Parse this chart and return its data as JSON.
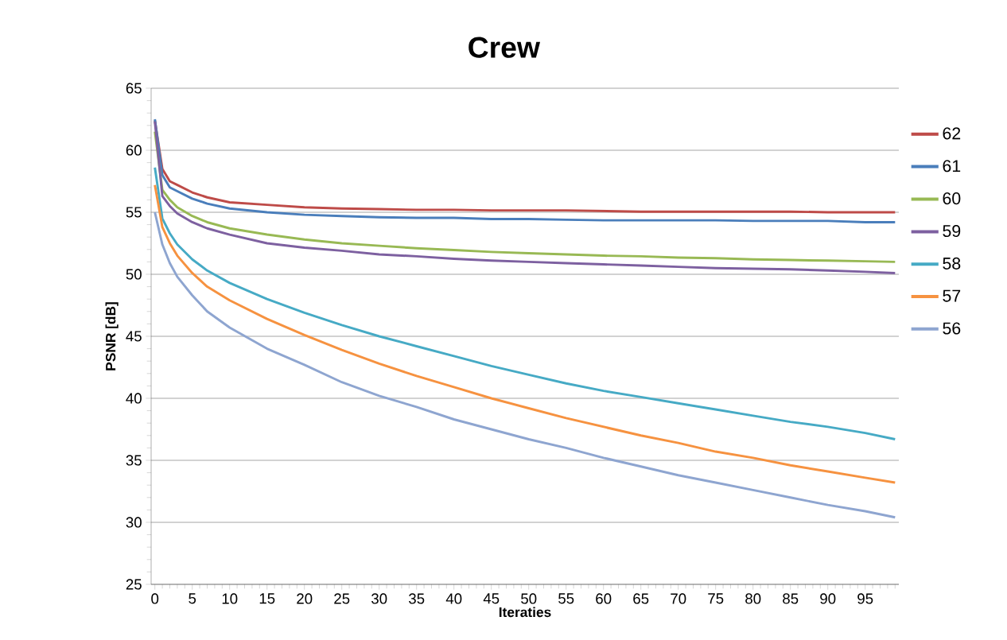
{
  "chart_data": {
    "type": "line",
    "title": "Crew",
    "xlabel": "Iteraties",
    "ylabel": "PSNR [dB]",
    "x": [
      0,
      1,
      2,
      3,
      5,
      7,
      10,
      15,
      20,
      25,
      30,
      35,
      40,
      45,
      50,
      55,
      60,
      65,
      70,
      75,
      80,
      85,
      90,
      95,
      99
    ],
    "series": [
      {
        "name": "62",
        "color": "#be4b48",
        "values": [
          62.4,
          58.5,
          57.5,
          57.2,
          56.6,
          56.2,
          55.8,
          55.6,
          55.4,
          55.3,
          55.25,
          55.2,
          55.2,
          55.15,
          55.15,
          55.15,
          55.1,
          55.05,
          55.05,
          55.05,
          55.05,
          55.05,
          55.0,
          55.0,
          55.0
        ]
      },
      {
        "name": "61",
        "color": "#4a7ebb",
        "values": [
          62.5,
          58.0,
          57.0,
          56.7,
          56.1,
          55.7,
          55.3,
          55.0,
          54.8,
          54.7,
          54.6,
          54.55,
          54.55,
          54.45,
          54.45,
          54.4,
          54.35,
          54.35,
          54.35,
          54.35,
          54.3,
          54.3,
          54.3,
          54.2,
          54.2
        ]
      },
      {
        "name": "60",
        "color": "#98b954",
        "values": [
          61.5,
          56.8,
          56.0,
          55.4,
          54.7,
          54.2,
          53.7,
          53.2,
          52.8,
          52.5,
          52.3,
          52.1,
          51.95,
          51.8,
          51.7,
          51.6,
          51.5,
          51.45,
          51.35,
          51.3,
          51.2,
          51.15,
          51.1,
          51.05,
          51.0
        ]
      },
      {
        "name": "59",
        "color": "#7d60a0",
        "values": [
          62.3,
          56.3,
          55.5,
          54.9,
          54.2,
          53.7,
          53.2,
          52.5,
          52.15,
          51.9,
          51.6,
          51.45,
          51.25,
          51.1,
          51.0,
          50.9,
          50.8,
          50.7,
          50.6,
          50.5,
          50.45,
          50.4,
          50.3,
          50.2,
          50.1
        ]
      },
      {
        "name": "58",
        "color": "#46aac5",
        "values": [
          58.6,
          54.5,
          53.3,
          52.4,
          51.2,
          50.3,
          49.3,
          48.0,
          46.9,
          45.9,
          45.0,
          44.2,
          43.4,
          42.6,
          41.9,
          41.2,
          40.6,
          40.1,
          39.6,
          39.1,
          38.6,
          38.1,
          37.7,
          37.2,
          36.7
        ]
      },
      {
        "name": "57",
        "color": "#f69240",
        "values": [
          57.2,
          53.8,
          52.5,
          51.5,
          50.1,
          49.0,
          47.9,
          46.4,
          45.1,
          43.9,
          42.8,
          41.8,
          40.9,
          40.0,
          39.2,
          38.4,
          37.7,
          37.0,
          36.4,
          35.7,
          35.2,
          34.6,
          34.1,
          33.6,
          33.2
        ]
      },
      {
        "name": "56",
        "color": "#8ea5d0",
        "values": [
          55.0,
          52.4,
          50.9,
          49.8,
          48.3,
          47.0,
          45.7,
          44.0,
          42.7,
          41.3,
          40.2,
          39.3,
          38.3,
          37.5,
          36.7,
          36.0,
          35.2,
          34.5,
          33.8,
          33.2,
          32.6,
          32.0,
          31.4,
          30.9,
          30.4
        ]
      }
    ],
    "xlim": [
      -0.5,
      99.5
    ],
    "xticks": [
      0,
      {
        "value": 1,
        "label": null
      },
      {
        "value": 2,
        "label": null
      },
      {
        "value": 3,
        "label": null
      },
      {
        "value": 4,
        "label": null
      },
      5,
      {
        "value": 6,
        "label": null
      },
      {
        "value": 7,
        "label": null
      },
      {
        "value": 8,
        "label": null
      },
      {
        "value": 9,
        "label": null
      },
      10,
      {
        "value": 11,
        "label": null
      },
      {
        "value": 12,
        "label": null
      },
      {
        "value": 13,
        "label": null
      },
      {
        "value": 14,
        "label": null
      },
      15,
      {
        "value": 16,
        "label": null
      },
      {
        "value": 17,
        "label": null
      },
      {
        "value": 18,
        "label": null
      },
      {
        "value": 19,
        "label": null
      },
      20,
      {
        "value": 21,
        "label": null
      },
      {
        "value": 22,
        "label": null
      },
      {
        "value": 23,
        "label": null
      },
      {
        "value": 24,
        "label": null
      },
      25,
      {
        "value": 26,
        "label": null
      },
      {
        "value": 27,
        "label": null
      },
      {
        "value": 28,
        "label": null
      },
      {
        "value": 29,
        "label": null
      },
      30,
      {
        "value": 31,
        "label": null
      },
      {
        "value": 32,
        "label": null
      },
      {
        "value": 33,
        "label": null
      },
      {
        "value": 34,
        "label": null
      },
      35,
      {
        "value": 36,
        "label": null
      },
      {
        "value": 37,
        "label": null
      },
      {
        "value": 38,
        "label": null
      },
      {
        "value": 39,
        "label": null
      },
      40,
      {
        "value": 41,
        "label": null
      },
      {
        "value": 42,
        "label": null
      },
      {
        "value": 43,
        "label": null
      },
      {
        "value": 44,
        "label": null
      },
      45,
      {
        "value": 46,
        "label": null
      },
      {
        "value": 47,
        "label": null
      },
      {
        "value": 48,
        "label": null
      },
      {
        "value": 49,
        "label": null
      },
      50,
      {
        "value": 51,
        "label": null
      },
      {
        "value": 52,
        "label": null
      },
      {
        "value": 53,
        "label": null
      },
      {
        "value": 54,
        "label": null
      },
      55,
      {
        "value": 56,
        "label": null
      },
      {
        "value": 57,
        "label": null
      },
      {
        "value": 58,
        "label": null
      },
      {
        "value": 59,
        "label": null
      },
      60,
      {
        "value": 61,
        "label": null
      },
      {
        "value": 62,
        "label": null
      },
      {
        "value": 63,
        "label": null
      },
      {
        "value": 64,
        "label": null
      },
      65,
      {
        "value": 66,
        "label": null
      },
      {
        "value": 67,
        "label": null
      },
      {
        "value": 68,
        "label": null
      },
      {
        "value": 69,
        "label": null
      },
      70,
      {
        "value": 71,
        "label": null
      },
      {
        "value": 72,
        "label": null
      },
      {
        "value": 73,
        "label": null
      },
      {
        "value": 74,
        "label": null
      },
      75,
      {
        "value": 76,
        "label": null
      },
      {
        "value": 77,
        "label": null
      },
      {
        "value": 78,
        "label": null
      },
      {
        "value": 79,
        "label": null
      },
      80,
      {
        "value": 81,
        "label": null
      },
      {
        "value": 82,
        "label": null
      },
      {
        "value": 83,
        "label": null
      },
      {
        "value": 84,
        "label": null
      },
      85,
      {
        "value": 86,
        "label": null
      },
      {
        "value": 87,
        "label": null
      },
      {
        "value": 88,
        "label": null
      },
      {
        "value": 89,
        "label": null
      },
      90,
      {
        "value": 91,
        "label": null
      },
      {
        "value": 92,
        "label": null
      },
      {
        "value": 93,
        "label": null
      },
      {
        "value": 94,
        "label": null
      },
      95,
      {
        "value": 96,
        "label": null
      },
      {
        "value": 97,
        "label": null
      },
      {
        "value": 98,
        "label": null
      },
      {
        "value": 99,
        "label": null
      }
    ],
    "ylim": [
      25,
      65
    ],
    "yticks": [
      25,
      {
        "value": 26,
        "label": null
      },
      {
        "value": 27,
        "label": null
      },
      {
        "value": 28,
        "label": null
      },
      {
        "value": 29,
        "label": null
      },
      30,
      {
        "value": 31,
        "label": null
      },
      {
        "value": 32,
        "label": null
      },
      {
        "value": 33,
        "label": null
      },
      {
        "value": 34,
        "label": null
      },
      35,
      {
        "value": 36,
        "label": null
      },
      {
        "value": 37,
        "label": null
      },
      {
        "value": 38,
        "label": null
      },
      {
        "value": 39,
        "label": null
      },
      40,
      {
        "value": 41,
        "label": null
      },
      {
        "value": 42,
        "label": null
      },
      {
        "value": 43,
        "label": null
      },
      {
        "value": 44,
        "label": null
      },
      45,
      {
        "value": 46,
        "label": null
      },
      {
        "value": 47,
        "label": null
      },
      {
        "value": 48,
        "label": null
      },
      {
        "value": 49,
        "label": null
      },
      50,
      {
        "value": 51,
        "label": null
      },
      {
        "value": 52,
        "label": null
      },
      {
        "value": 53,
        "label": null
      },
      {
        "value": 54,
        "label": null
      },
      55,
      {
        "value": 56,
        "label": null
      },
      {
        "value": 57,
        "label": null
      },
      {
        "value": 58,
        "label": null
      },
      {
        "value": 59,
        "label": null
      },
      60,
      {
        "value": 61,
        "label": null
      },
      {
        "value": 62,
        "label": null
      },
      {
        "value": 63,
        "label": null
      },
      {
        "value": 64,
        "label": null
      },
      65
    ],
    "grid": "y",
    "legend": "right",
    "marker": "none",
    "line_style": "solid"
  }
}
